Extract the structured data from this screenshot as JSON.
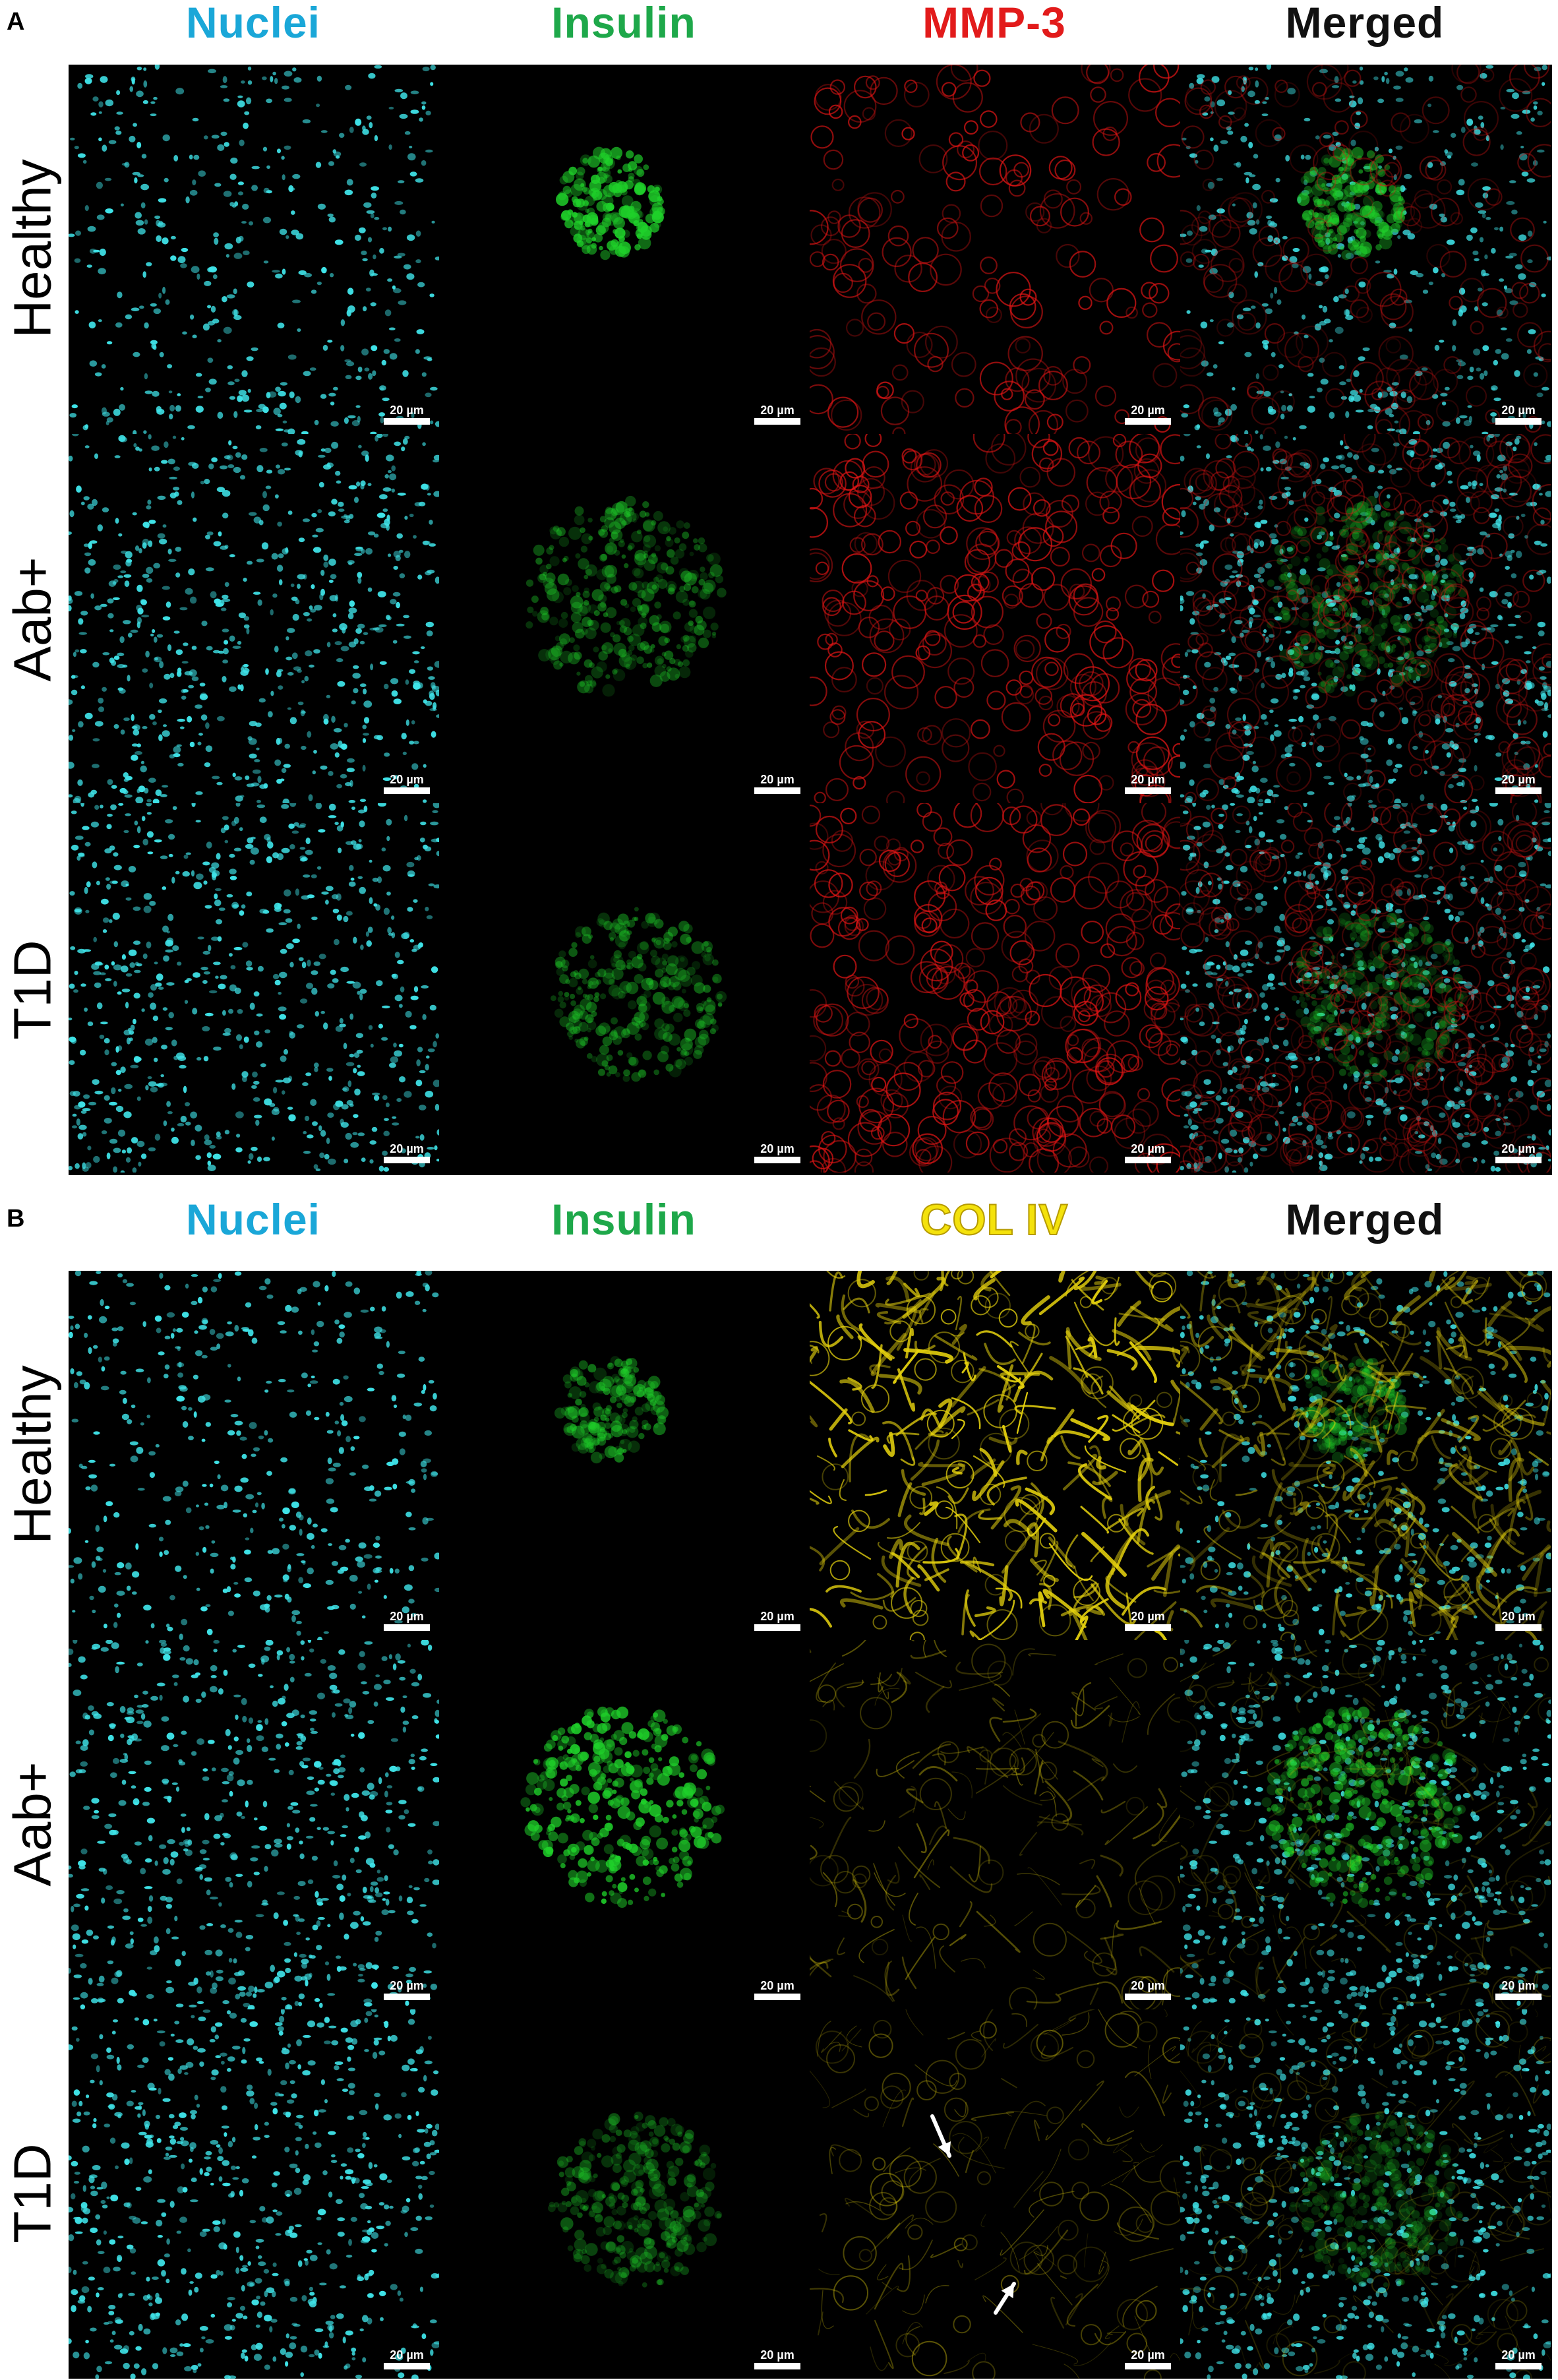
{
  "panels": [
    {
      "letter": "A",
      "columns": [
        "Nuclei",
        "Insulin",
        "MMP-3",
        "Merged"
      ],
      "rows": [
        "Healthy",
        "Aab+",
        "T1D"
      ]
    },
    {
      "letter": "B",
      "columns": [
        "Nuclei",
        "Insulin",
        "COL IV",
        "Merged"
      ],
      "rows": [
        "Healthy",
        "Aab+",
        "T1D"
      ]
    }
  ],
  "scale_bar_label": "20 µm",
  "channel_colors": {
    "nuclei": "#3fe3e8",
    "insulin": "#1fd12a",
    "mmp3": "#e31515",
    "col4": "#e6d20e"
  }
}
